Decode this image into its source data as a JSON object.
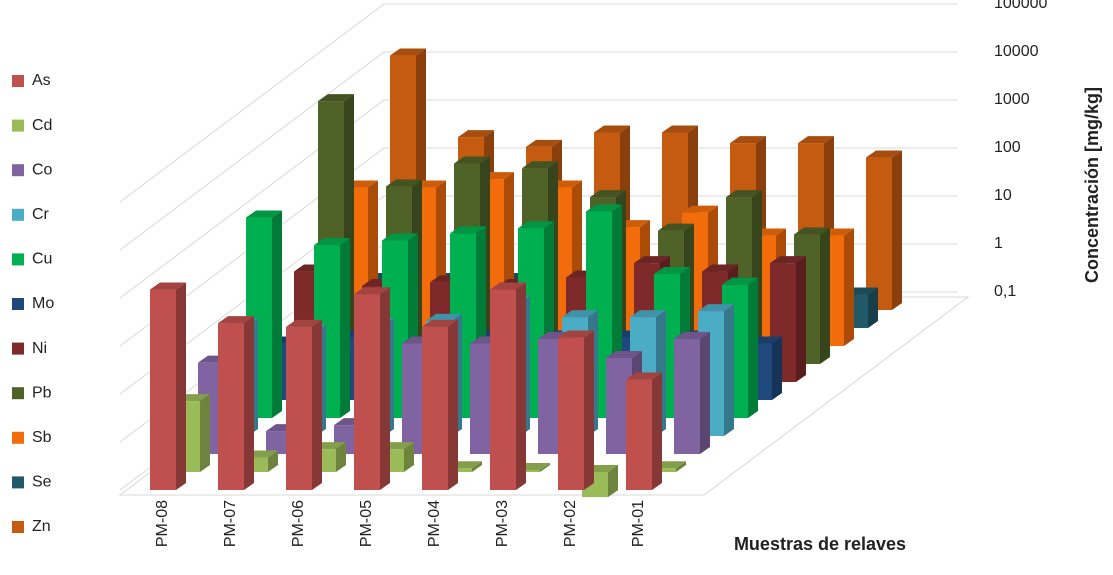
{
  "chart_data": {
    "type": "bar3d",
    "y_label": "Concentración [mg/kg]",
    "x_label": "Muestras de relaves",
    "categories": [
      "PM-08",
      "PM-07",
      "PM-06",
      "PM-05",
      "PM-04",
      "PM-03",
      "PM-02",
      "PM-01"
    ],
    "log_scale": true,
    "grid": true,
    "legend": "left",
    "ylim": [
      0.1,
      100000
    ],
    "yticks": [
      {
        "value": 0.1,
        "label": "0,1"
      },
      1,
      10,
      100,
      1000,
      10000,
      100000
    ],
    "series": [
      {
        "name": "As",
        "color": "#c0504d",
        "values": [
          1500,
          300,
          250,
          1200,
          250,
          1500,
          150,
          20
        ]
      },
      {
        "name": "Cd",
        "color": "#9bbb59",
        "values": [
          3,
          0.2,
          0.3,
          0.3,
          0.12,
          0.11,
          0.03,
          0.12
        ]
      },
      {
        "name": "Co",
        "color": "#8064a2",
        "values": [
          8,
          0.3,
          0.4,
          20,
          20,
          25,
          10,
          25
        ]
      },
      {
        "name": "Cr",
        "color": "#4bacc6",
        "values": [
          20,
          15,
          20,
          25,
          60,
          30,
          30,
          40
        ]
      },
      {
        "name": "Cu",
        "color": "#00b050",
        "values": [
          1500,
          400,
          500,
          700,
          900,
          2000,
          100,
          60
        ]
      },
      {
        "name": "Mo",
        "color": "#1f497d",
        "values": [
          1.5,
          2,
          1.5,
          2,
          2,
          2,
          2,
          1.5
        ]
      },
      {
        "name": "Ni",
        "color": "#7f2a2a",
        "values": [
          20,
          10,
          12,
          10,
          15,
          30,
          20,
          30
        ]
      },
      {
        "name": "Pb",
        "color": "#4f6228",
        "values": [
          30000,
          500,
          1500,
          1200,
          300,
          60,
          300,
          50
        ]
      },
      {
        "name": "Sb",
        "color": "#f36c0b",
        "values": [
          200,
          200,
          300,
          200,
          30,
          60,
          20,
          20
        ]
      },
      {
        "name": "Se",
        "color": "#215968",
        "values": [
          1,
          1,
          1,
          1,
          1,
          1,
          1,
          0.5
        ]
      },
      {
        "name": "Zn",
        "color": "#c55a11",
        "values": [
          20000,
          400,
          250,
          500,
          500,
          300,
          300,
          150
        ]
      }
    ]
  }
}
